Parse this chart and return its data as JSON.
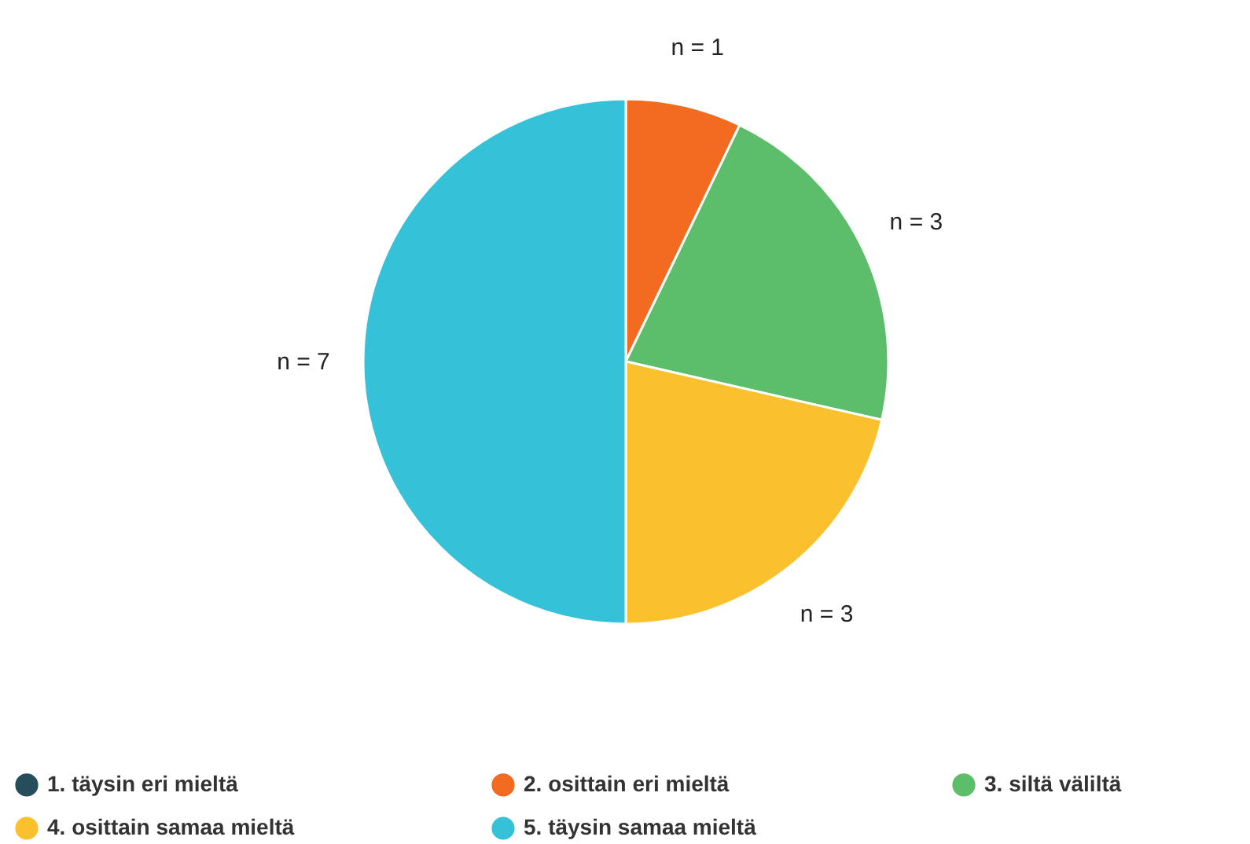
{
  "chart_data": {
    "type": "pie",
    "categories": [
      "1. täysin eri mieltä",
      "2. osittain eri mieltä",
      "3. siltä väliltä",
      "4. osittain samaa mieltä",
      "5. täysin samaa mieltä"
    ],
    "values": [
      0,
      1,
      3,
      3,
      7
    ],
    "colors": [
      "#264d5c",
      "#f26b21",
      "#5cbd6a",
      "#fbc02d",
      "#35c2d9"
    ],
    "value_labels": [
      null,
      "n = 1",
      "n = 3",
      "n = 3",
      "n = 7"
    ],
    "legend": "bottom"
  }
}
